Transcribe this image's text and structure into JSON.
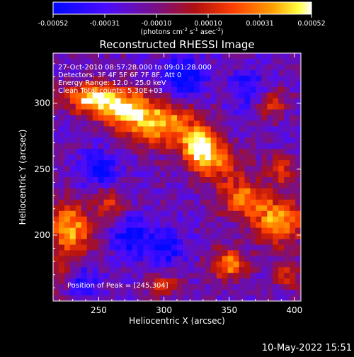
{
  "chart_data": {
    "type": "heatmap",
    "title": "Reconstructed RHESSI Image",
    "xlabel": "Heliocentric X (arcsec)",
    "ylabel": "Heliocentric Y (arcsec)",
    "xlim": [
      215,
      405
    ],
    "ylim": [
      150,
      338
    ],
    "x_ticks": [
      250,
      300,
      350,
      400
    ],
    "y_ticks": [
      200,
      250,
      300
    ],
    "colorbar": {
      "min": -0.00052,
      "max": 0.00052,
      "ticks": [
        "-0.00052",
        "-0.00031",
        "-0.00010",
        "0.00010",
        "0.00031",
        "0.00052"
      ],
      "units_parts": [
        "(photons cm",
        "-2",
        " s",
        "-1",
        " asec",
        "-2",
        ")"
      ]
    },
    "annotations": {
      "time": "27-Oct-2010 08:57:28.000 to 09:01:28.000",
      "detectors": "Detectors: 3F 4F 5F 6F 7F 8F, Att 0",
      "energy": "Energy Range: 12.0 - 25.0 keV",
      "clean": "Clean     Total counts: 5.30E+03",
      "peak": "Position of Peak = [245,304]"
    },
    "features": [
      {
        "x": 245,
        "y": 304,
        "amp": 1.0,
        "sx": 14,
        "sy": 8
      },
      {
        "x": 270,
        "y": 296,
        "amp": 0.85,
        "sx": 14,
        "sy": 10
      },
      {
        "x": 298,
        "y": 284,
        "amp": 0.9,
        "sx": 18,
        "sy": 12
      },
      {
        "x": 328,
        "y": 268,
        "amp": 0.95,
        "sx": 10,
        "sy": 10
      },
      {
        "x": 340,
        "y": 255,
        "amp": 0.6,
        "sx": 14,
        "sy": 10
      },
      {
        "x": 360,
        "y": 228,
        "amp": 0.7,
        "sx": 14,
        "sy": 10
      },
      {
        "x": 388,
        "y": 210,
        "amp": 0.85,
        "sx": 14,
        "sy": 12
      },
      {
        "x": 228,
        "y": 205,
        "amp": 0.85,
        "sx": 12,
        "sy": 14
      },
      {
        "x": 258,
        "y": 225,
        "amp": 0.5,
        "sx": 8,
        "sy": 8
      },
      {
        "x": 350,
        "y": 178,
        "amp": 0.8,
        "sx": 10,
        "sy": 8
      },
      {
        "x": 383,
        "y": 300,
        "amp": 0.55,
        "sx": 8,
        "sy": 8
      },
      {
        "x": 390,
        "y": 250,
        "amp": 0.5,
        "sx": 8,
        "sy": 8
      },
      {
        "x": 300,
        "y": 162,
        "amp": 0.45,
        "sx": 10,
        "sy": 6
      },
      {
        "x": 395,
        "y": 170,
        "amp": 0.5,
        "sx": 8,
        "sy": 8
      },
      {
        "x": 222,
        "y": 168,
        "amp": 0.45,
        "sx": 8,
        "sy": 10
      }
    ],
    "min_regions": [
      {
        "x": 315,
        "y": 320,
        "amp": -0.6,
        "sx": 12,
        "sy": 10
      },
      {
        "x": 250,
        "y": 250,
        "amp": -0.5,
        "sx": 10,
        "sy": 10
      },
      {
        "x": 235,
        "y": 165,
        "amp": -0.5,
        "sx": 10,
        "sy": 8
      },
      {
        "x": 275,
        "y": 200,
        "amp": -0.5,
        "sx": 10,
        "sy": 10
      },
      {
        "x": 365,
        "y": 310,
        "amp": -0.45,
        "sx": 10,
        "sy": 10
      },
      {
        "x": 300,
        "y": 190,
        "amp": -0.45,
        "sx": 12,
        "sy": 10
      }
    ]
  },
  "footer": {
    "datestamp": "10-May-2022 15:51"
  }
}
